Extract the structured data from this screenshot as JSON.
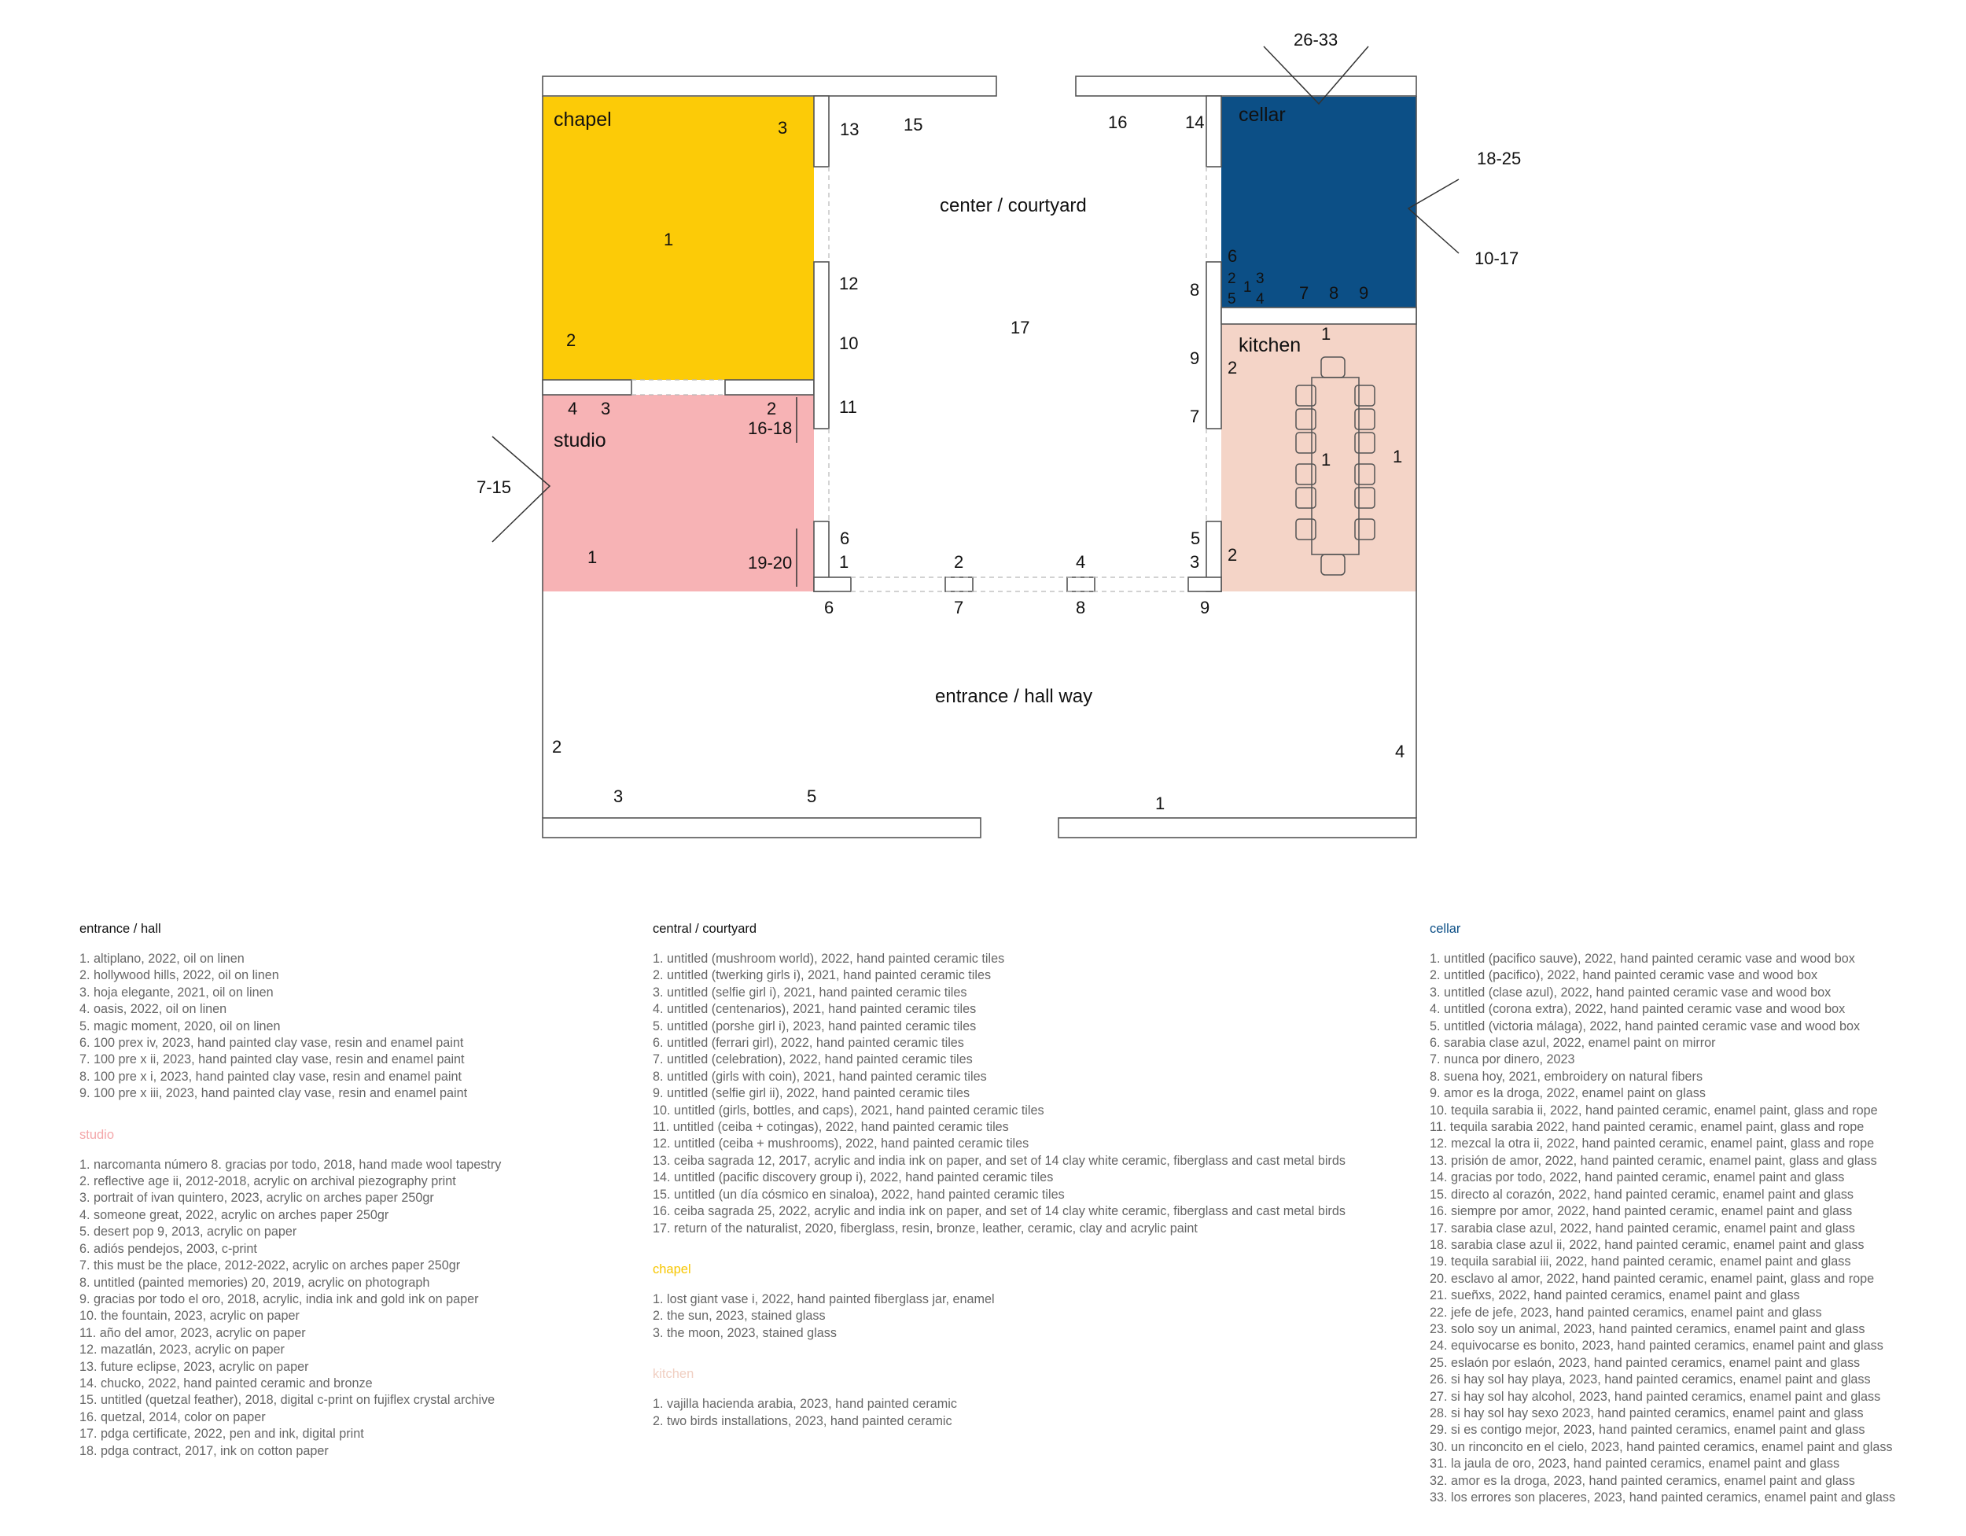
{
  "plan": {
    "areas": {
      "courtyard": "center / courtyard",
      "entrance": "entrance / hall way"
    },
    "rooms": {
      "chapel": {
        "label": "chapel",
        "color": "#fccb07"
      },
      "cellar": {
        "label": "cellar",
        "color": "#0c4f86"
      },
      "studio": {
        "label": "studio",
        "color": "#f7b3b5"
      },
      "kitchen": {
        "label": "kitchen",
        "color": "#f4d4c7"
      }
    },
    "views": {
      "top": "26-33",
      "right_upper": "18-25",
      "right_lower": "10-17",
      "left": "7-15"
    },
    "numbers": {
      "chapel_1": "1",
      "chapel_2": "2",
      "chapel_3": "3",
      "studio_1": "1",
      "studio_2": "2",
      "studio_3": "3",
      "studio_4": "4",
      "studio_16_18": "16-18",
      "studio_19_20": "19-20",
      "c_1": "1",
      "c_2": "2",
      "c_3": "3",
      "c_4": "4",
      "c_5": "5",
      "c_6": "6",
      "c_7": "7",
      "c_8": "8",
      "c_9": "9",
      "c_10": "10",
      "c_11": "11",
      "c_12": "12",
      "c_13": "13",
      "c_14": "14",
      "c_15": "15",
      "c_16": "16",
      "c_17": "17",
      "cel_1": "1",
      "cel_2": "2",
      "cel_3": "3",
      "cel_4": "4",
      "cel_5": "5",
      "cel_6": "6",
      "cel_7": "7",
      "cel_8": "8",
      "cel_9": "9",
      "k_1a": "1",
      "k_1b": "1",
      "k_1c": "1",
      "k_2a": "2",
      "k_2b": "2",
      "e_1": "1",
      "e_2": "2",
      "e_3": "3",
      "e_4": "4",
      "e_5": "5",
      "e_6": "6",
      "e_7": "7",
      "e_8": "8",
      "e_9": "9"
    }
  },
  "legend": {
    "entrance": {
      "title": "entrance / hall",
      "color": "#111111",
      "items": [
        "1.   altiplano, 2022, oil on linen",
        "2.   hollywood hills, 2022, oil on linen",
        "3.   hoja elegante, 2021, oil on linen",
        "4.   oasis, 2022, oil on linen",
        "5.   magic moment, 2020, oil on linen",
        "6.   100 prex iv, 2023, hand painted clay vase, resin and enamel paint",
        "7.   100 pre x ii, 2023, hand painted clay vase, resin and enamel paint",
        "8.   100 pre x i, 2023, hand painted clay vase, resin and enamel paint",
        "9.   100 pre x iii, 2023, hand painted clay vase, resin and enamel paint"
      ]
    },
    "studio": {
      "title": "studio",
      "color": "#f4a7aa",
      "items": [
        "1.   narcomanta número 8. gracias por todo, 2018, hand made wool tapestry",
        "2.   reflective age ii, 2012-2018, acrylic on archival piezography print",
        "3.   portrait of ivan quintero, 2023, acrylic on arches paper 250gr",
        "4.   someone great, 2022, acrylic on arches paper 250gr",
        "5.   desert pop 9, 2013, acrylic on paper",
        "6.   adiós pendejos, 2003, c-print",
        "7.   this must be the place, 2012-2022, acrylic on arches paper 250gr",
        "8.   untitled (painted memories) 20, 2019, acrylic on photograph",
        "9.   gracias por todo el oro, 2018, acrylic, india ink and gold ink on paper",
        "10.  the fountain, 2023, acrylic on paper",
        "11.  año del amor, 2023, acrylic on paper",
        "12.  mazatlán, 2023, acrylic on paper",
        "13.  future eclipse, 2023, acrylic on paper",
        "14.  chucko, 2022, hand painted ceramic and bronze",
        "15.  untitled (quetzal feather), 2018, digital c-print on fujiflex crystal archive",
        "16.  quetzal, 2014, color on paper",
        "17.  pdga certificate, 2022, pen and ink, digital print",
        "18.  pdga contract, 2017, ink on cotton paper"
      ]
    },
    "courtyard": {
      "title": "central / courtyard",
      "color": "#111111",
      "items": [
        "1.   untitled (mushroom world), 2022, hand painted ceramic tiles",
        "2.   untitled (twerking girls i), 2021, hand painted ceramic tiles",
        "3.   untitled (selfie girl i), 2021, hand painted ceramic tiles",
        "4.   untitled (centenarios), 2021, hand painted ceramic tiles",
        "5.   untitled (porshe girl i), 2023, hand painted ceramic tiles",
        "6.   untitled (ferrari girl), 2022, hand painted ceramic tiles",
        "7.   untitled (celebration), 2022, hand painted ceramic tiles",
        "8.   untitled (girls with coin), 2021, hand painted ceramic tiles",
        "9.   untitled (selfie girl ii), 2022, hand painted ceramic tiles",
        "10.  untitled (girls, bottles, and caps), 2021, hand painted ceramic tiles",
        "11.  untitled (ceiba + cotingas), 2022, hand painted ceramic tiles",
        "12.  untitled (ceiba + mushrooms), 2022, hand painted ceramic tiles",
        "13.  ceiba sagrada 12, 2017, acrylic and india ink on paper, and set of 14 clay white ceramic, fiberglass and cast metal birds",
        "14.  untitled (pacific discovery group i), 2022, hand painted ceramic tiles",
        "15.  untitled (un día cósmico en sinaloa), 2022, hand painted ceramic tiles",
        "16.  ceiba sagrada 25, 2022, acrylic and india ink on paper, and set of 14 clay white ceramic, fiberglass and cast metal birds",
        "17.  return of the naturalist, 2020, fiberglass, resin, bronze, leather, ceramic, clay and acrylic paint"
      ]
    },
    "chapel": {
      "title": "chapel",
      "color": "#f7c600",
      "items": [
        "1.   lost giant vase i, 2022, hand painted fiberglass jar, enamel",
        "2.   the sun, 2023, stained glass",
        "3.   the moon, 2023, stained glass"
      ]
    },
    "kitchen": {
      "title": "kitchen",
      "color": "#f0cfc2",
      "items": [
        "1.   vajilla hacienda arabia, 2023, hand painted ceramic",
        "2.   two birds installations, 2023, hand painted ceramic"
      ]
    },
    "cellar": {
      "title": "cellar",
      "color": "#0c4f86",
      "items": [
        "1.   untitled (pacifico sauve), 2022, hand painted ceramic vase and wood box",
        "2.   untitled (pacifico), 2022, hand painted ceramic vase and wood box",
        "3.   untitled (clase azul), 2022, hand painted ceramic vase and wood box",
        "4.   untitled (corona extra), 2022, hand painted ceramic vase and wood box",
        "5.   untitled (victoria málaga), 2022, hand painted ceramic vase and wood box",
        "6.   sarabia clase azul, 2022, enamel paint on mirror",
        "7.   nunca por dinero, 2023",
        "8.   suena hoy, 2021, embroidery on natural fibers",
        "9.   amor es la droga, 2022, enamel paint on glass",
        "10. tequila sarabia ii, 2022, hand painted ceramic, enamel paint, glass and rope",
        "11. tequila sarabia 2022, hand painted ceramic, enamel paint, glass and rope",
        "12. mezcal la otra ii, 2022, hand painted ceramic, enamel paint, glass and rope",
        "13. prisión de amor, 2022, hand painted ceramic, enamel paint, glass and glass",
        "14. gracias por todo, 2022, hand painted ceramic, enamel paint and glass",
        "15. directo al corazón, 2022, hand painted ceramic, enamel paint and glass",
        "16. siempre por amor, 2022, hand painted ceramic, enamel paint and glass",
        "17. sarabia clase azul, 2022, hand painted ceramic, enamel paint and glass",
        "18. sarabia clase azul ii, 2022, hand painted ceramic, enamel paint and glass",
        "19. tequila sarabial iii, 2022, hand painted ceramic, enamel paint and glass",
        "20. esclavo al amor, 2022, hand painted ceramic, enamel paint, glass and rope",
        "21. sueñxs, 2022, hand painted ceramics, enamel paint and glass",
        "22. jefe de jefe, 2023, hand painted ceramics, enamel paint and glass",
        "23. solo soy un animal, 2023, hand painted ceramics, enamel paint and glass",
        "24. equivocarse es bonito, 2023, hand painted ceramics, enamel paint and glass",
        "25. eslaón por eslaón, 2023, hand painted ceramics, enamel paint and glass",
        "26. si hay sol hay playa, 2023, hand painted ceramics, enamel paint and glass",
        "27. si hay sol hay alcohol, 2023, hand painted ceramics, enamel paint and glass",
        "28. si hay sol hay sexo 2023, hand painted ceramics, enamel paint and glass",
        "29. si es contigo mejor, 2023, hand painted ceramics, enamel paint and glass",
        "30. un rinconcito en el cielo, 2023, hand painted ceramics, enamel paint and glass",
        "31. la jaula de oro, 2023, hand painted ceramics, enamel paint and glass",
        "32. amor es la droga, 2023, hand painted ceramics, enamel paint and glass",
        "33. los errores son placeres, 2023, hand painted ceramics, enamel paint and glass"
      ]
    }
  }
}
